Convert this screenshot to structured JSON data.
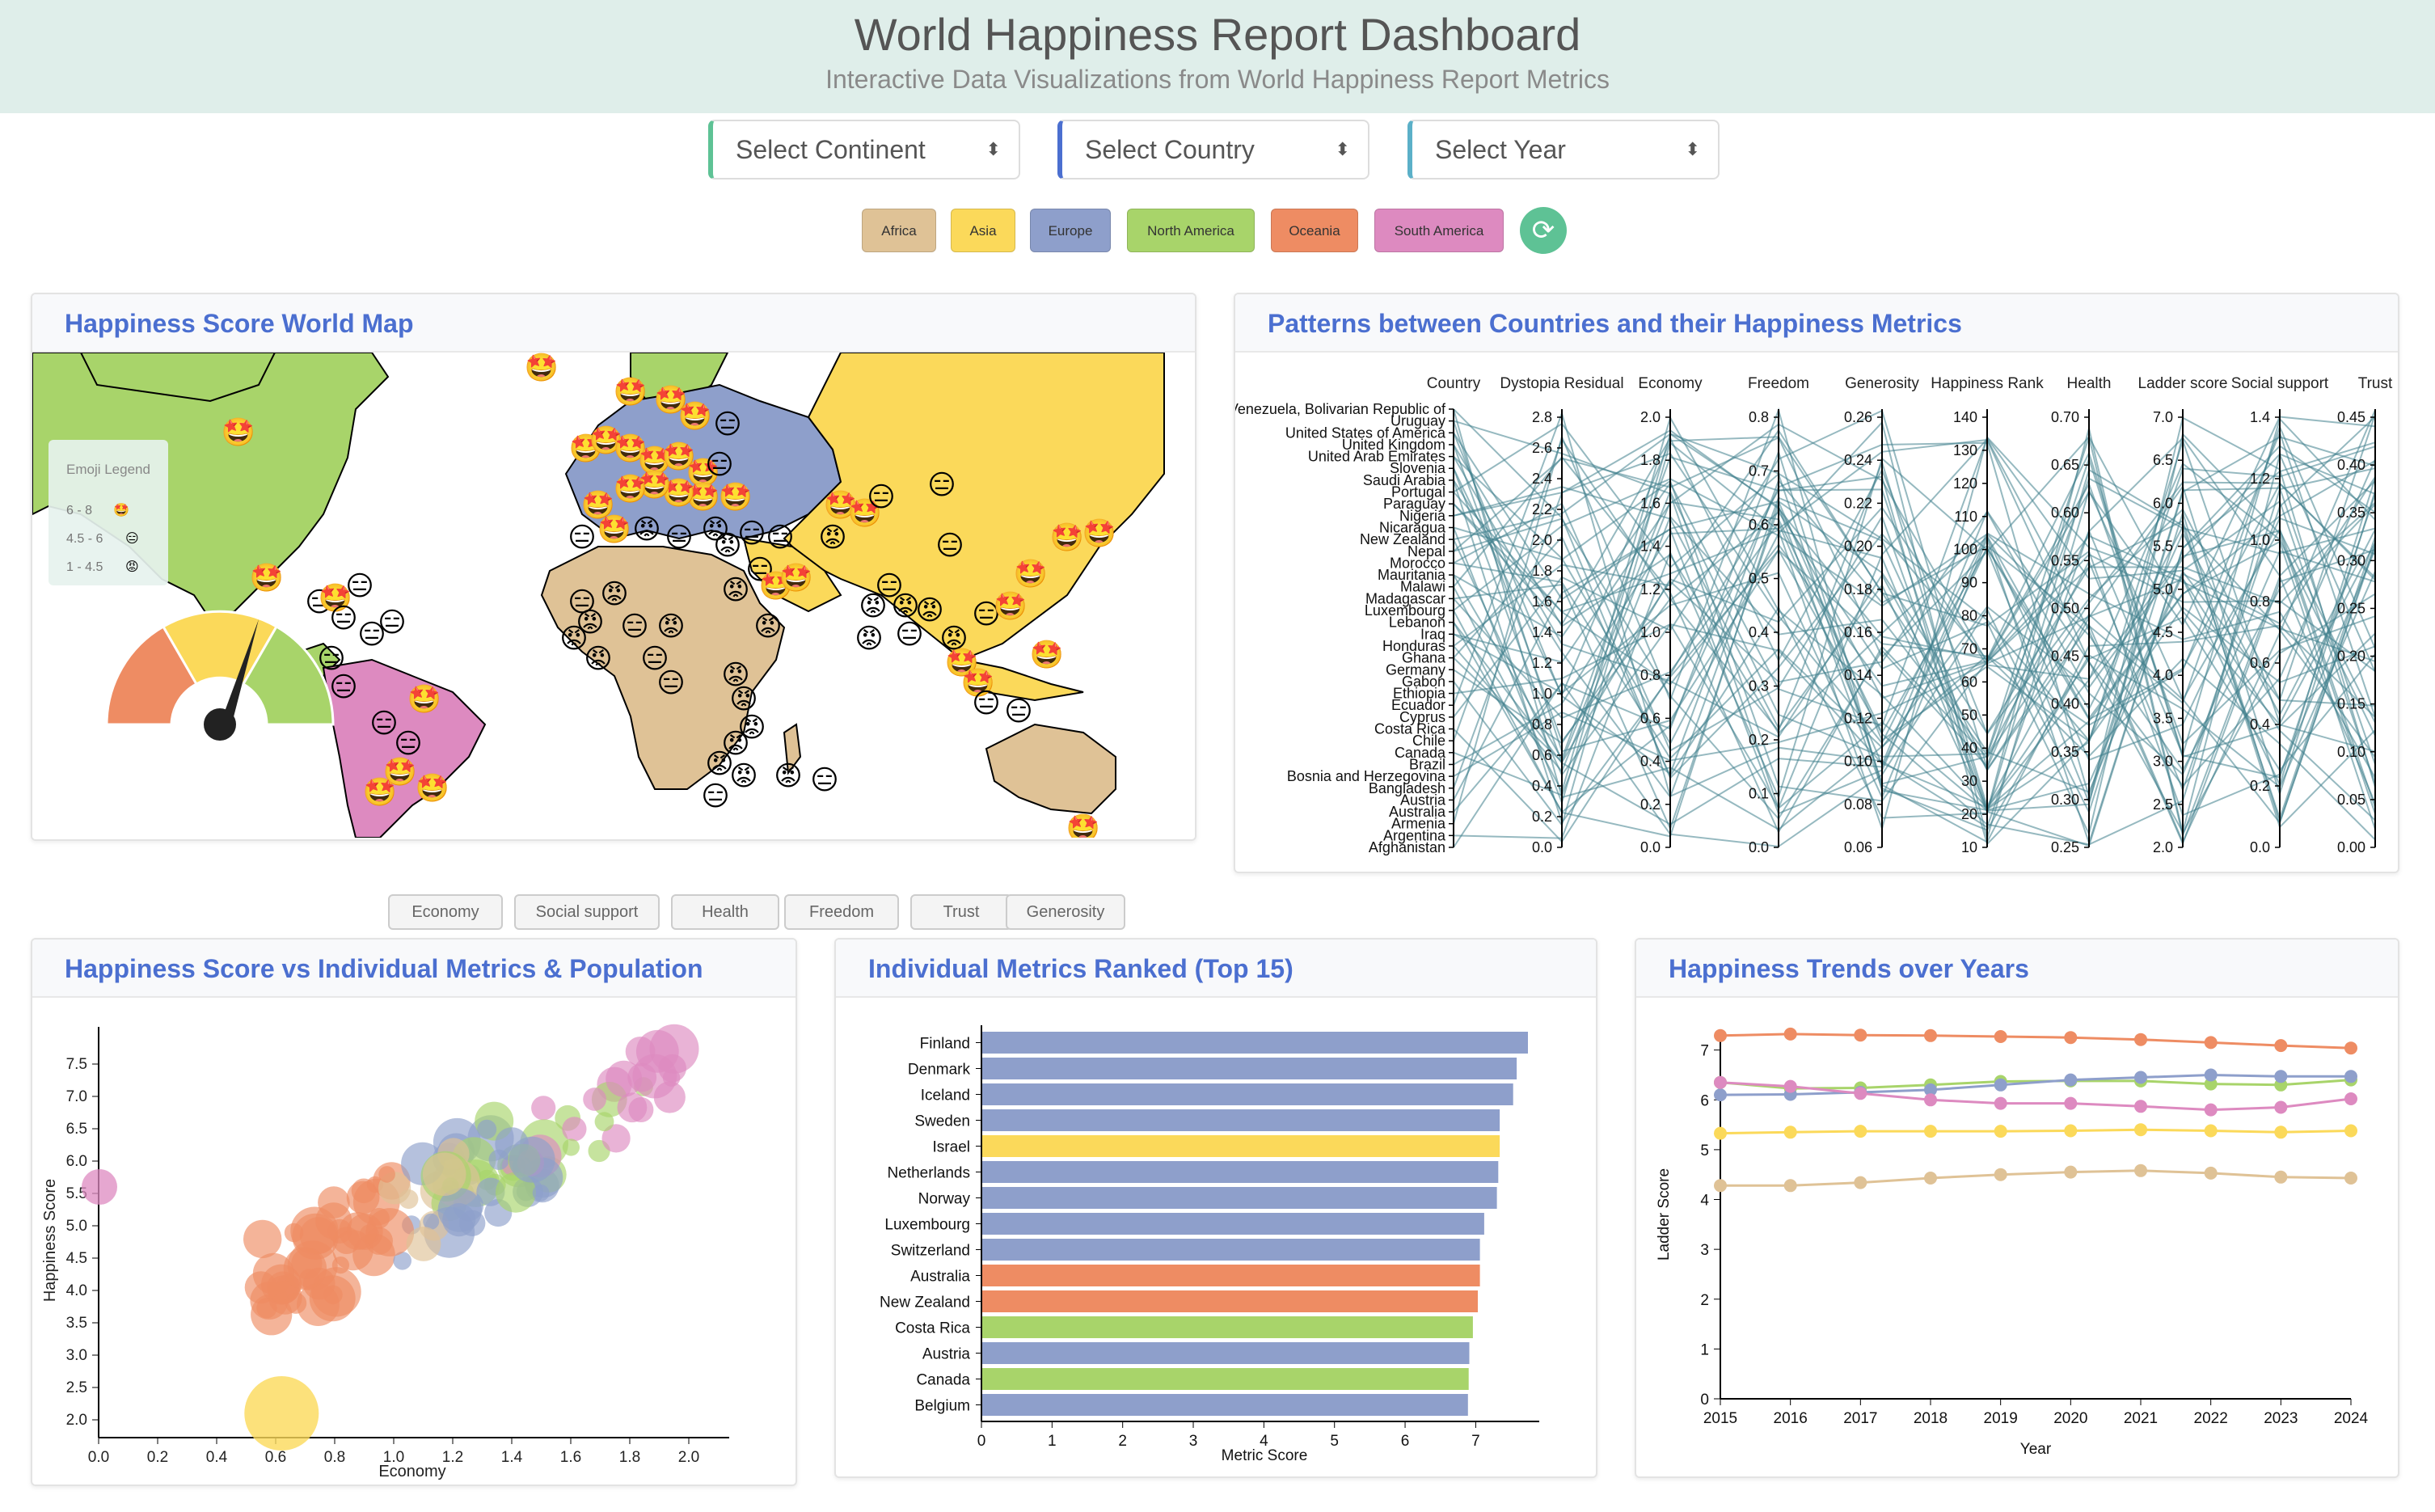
{
  "header": {
    "title": "World Happiness Report Dashboard",
    "subtitle": "Interactive Data Visualizations from World Happiness Report Metrics"
  },
  "filters": {
    "continent": "Select Continent",
    "country": "Select Country",
    "year": "Select Year"
  },
  "continents": [
    {
      "label": "Africa",
      "color": "#dfc296"
    },
    {
      "label": "Asia",
      "color": "#fbd95a"
    },
    {
      "label": "Europe",
      "color": "#8e9fcb"
    },
    {
      "label": "North America",
      "color": "#a8d46a"
    },
    {
      "label": "Oceania",
      "color": "#ee8c63"
    },
    {
      "label": "South America",
      "color": "#dd8ac0"
    }
  ],
  "map": {
    "title": "Happiness Score World Map",
    "legend_title": "Emoji Legend",
    "legend": [
      {
        "range": "6 - 8",
        "emoji": "🤩"
      },
      {
        "range": "4.5 - 6",
        "emoji": "😑"
      },
      {
        "range": "1 - 4.5",
        "emoji": "😡"
      }
    ]
  },
  "parallel": {
    "title": "Patterns between Countries and their Happiness Metrics",
    "axes": [
      "Country",
      "Dystopia Residual",
      "Economy",
      "Freedom",
      "Generosity",
      "Happiness Rank",
      "Health",
      "Ladder score",
      "Social support",
      "Trust"
    ],
    "countries": [
      "Venezuela, Bolivarian Republic of",
      "Uruguay",
      "United States of America",
      "United Kingdom",
      "United Arab Emirates",
      "Slovenia",
      "Saudi Arabia",
      "Portugal",
      "Paraguay",
      "Nigeria",
      "Nicaragua",
      "New Zealand",
      "Nepal",
      "Morocco",
      "Mauritania",
      "Malawi",
      "Madagascar",
      "Luxembourg",
      "Lebanon",
      "Iraq",
      "Honduras",
      "Ghana",
      "Germany",
      "Gabon",
      "Ethiopia",
      "Ecuador",
      "Cyprus",
      "Costa Rica",
      "Chile",
      "Canada",
      "Brazil",
      "Bosnia and Herzegovina",
      "Bangladesh",
      "Austria",
      "Australia",
      "Armenia",
      "Argentina",
      "Afghanistan"
    ],
    "ticks": {
      "Dystopia Residual": [
        "0.0",
        "0.2",
        "0.4",
        "0.6",
        "0.8",
        "1.0",
        "1.2",
        "1.4",
        "1.6",
        "1.8",
        "2.0",
        "2.2",
        "2.4",
        "2.6",
        "2.8"
      ],
      "Economy": [
        "0.0",
        "0.2",
        "0.4",
        "0.6",
        "0.8",
        "1.0",
        "1.2",
        "1.4",
        "1.6",
        "1.8",
        "2.0"
      ],
      "Freedom": [
        "0.0",
        "0.1",
        "0.2",
        "0.3",
        "0.4",
        "0.5",
        "0.6",
        "0.7",
        "0.8"
      ],
      "Generosity": [
        "0.06",
        "0.08",
        "0.10",
        "0.12",
        "0.14",
        "0.16",
        "0.18",
        "0.20",
        "0.22",
        "0.24",
        "0.26"
      ],
      "Happiness Rank": [
        "10",
        "20",
        "30",
        "40",
        "50",
        "60",
        "70",
        "80",
        "90",
        "100",
        "110",
        "120",
        "130",
        "140"
      ],
      "Health": [
        "0.25",
        "0.30",
        "0.35",
        "0.40",
        "0.45",
        "0.50",
        "0.55",
        "0.60",
        "0.65",
        "0.70"
      ],
      "Ladder score": [
        "2.0",
        "2.5",
        "3.0",
        "3.5",
        "4.0",
        "4.5",
        "5.0",
        "5.5",
        "6.0",
        "6.5",
        "7.0"
      ],
      "Social support": [
        "0.0",
        "0.2",
        "0.4",
        "0.6",
        "0.8",
        "1.0",
        "1.2",
        "1.4"
      ],
      "Trust": [
        "0.00",
        "0.05",
        "0.10",
        "0.15",
        "0.20",
        "0.25",
        "0.30",
        "0.35",
        "0.40",
        "0.45"
      ]
    }
  },
  "metric_buttons": [
    "Economy",
    "Social support",
    "Health",
    "Freedom",
    "Trust",
    "Generosity"
  ],
  "scatter": {
    "title": "Happiness Score vs Individual Metrics & Population",
    "xlabel": "Economy",
    "ylabel": "Happiness Score",
    "xticks": [
      "0.0",
      "0.2",
      "0.4",
      "0.6",
      "0.8",
      "1.0",
      "1.2",
      "1.4",
      "1.6",
      "1.8",
      "2.0"
    ],
    "yticks": [
      "2.0",
      "2.5",
      "3.0",
      "3.5",
      "4.0",
      "4.5",
      "5.0",
      "5.5",
      "6.0",
      "6.5",
      "7.0",
      "7.5"
    ]
  },
  "chart_data": [
    {
      "type": "bar",
      "title": "Individual Metrics Ranked (Top 15)",
      "xlabel": "Metric Score",
      "ylabel": "",
      "categories": [
        "Finland",
        "Denmark",
        "Iceland",
        "Sweden",
        "Israel",
        "Netherlands",
        "Norway",
        "Luxembourg",
        "Switzerland",
        "Australia",
        "New Zealand",
        "Costa Rica",
        "Austria",
        "Canada",
        "Belgium"
      ],
      "values": [
        7.74,
        7.58,
        7.53,
        7.34,
        7.34,
        7.32,
        7.3,
        7.12,
        7.06,
        7.06,
        7.03,
        6.96,
        6.91,
        6.9,
        6.89
      ],
      "continent": [
        "Europe",
        "Europe",
        "Europe",
        "Europe",
        "Asia",
        "Europe",
        "Europe",
        "Europe",
        "Europe",
        "Oceania",
        "Oceania",
        "North America",
        "Europe",
        "North America",
        "Europe"
      ],
      "xticks": [
        "0",
        "1",
        "2",
        "3",
        "4",
        "5",
        "6",
        "7"
      ],
      "xlim": [
        0,
        7.9
      ]
    },
    {
      "type": "line",
      "title": "Happiness Trends over Years",
      "xlabel": "Year",
      "ylabel": "Ladder Score",
      "x": [
        "2015",
        "2016",
        "2017",
        "2018",
        "2019",
        "2020",
        "2021",
        "2022",
        "2023",
        "2024"
      ],
      "yticks": [
        "0",
        "1",
        "2",
        "3",
        "4",
        "5",
        "6",
        "7"
      ],
      "ylim": [
        0,
        7.4
      ],
      "series": [
        {
          "continent": "Oceania",
          "color": "#ee8c63",
          "values": [
            7.29,
            7.32,
            7.3,
            7.29,
            7.27,
            7.25,
            7.21,
            7.15,
            7.09,
            7.04
          ]
        },
        {
          "continent": "North America",
          "color": "#a8d46a",
          "values": [
            6.35,
            6.23,
            6.24,
            6.3,
            6.37,
            6.38,
            6.38,
            6.32,
            6.3,
            6.4
          ]
        },
        {
          "continent": "Europe",
          "color": "#8e9fcb",
          "values": [
            6.1,
            6.11,
            6.15,
            6.2,
            6.3,
            6.4,
            6.45,
            6.5,
            6.47,
            6.47
          ]
        },
        {
          "continent": "South America",
          "color": "#dd8ac0",
          "values": [
            6.35,
            6.27,
            6.13,
            6.0,
            5.93,
            5.93,
            5.87,
            5.8,
            5.85,
            6.02
          ]
        },
        {
          "continent": "Asia",
          "color": "#fbd95a",
          "values": [
            5.33,
            5.35,
            5.37,
            5.37,
            5.37,
            5.38,
            5.4,
            5.38,
            5.35,
            5.38
          ]
        },
        {
          "continent": "Africa",
          "color": "#dfc296",
          "values": [
            4.28,
            4.28,
            4.34,
            4.43,
            4.5,
            4.55,
            4.58,
            4.53,
            4.45,
            4.43
          ]
        }
      ]
    }
  ]
}
